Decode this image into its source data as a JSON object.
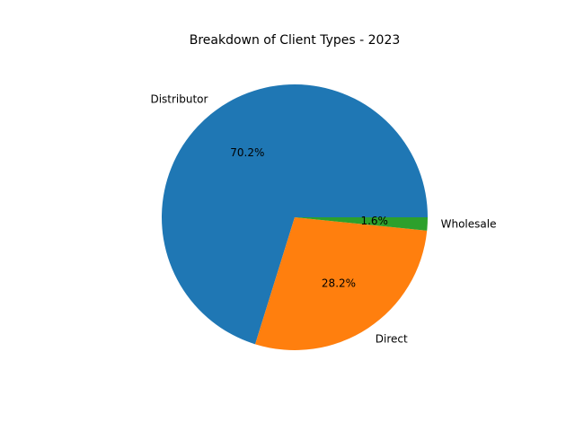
{
  "chart_data": {
    "type": "pie",
    "title": "Breakdown of Client Types - 2023",
    "categories": [
      "Distributor",
      "Direct",
      "Wholesale"
    ],
    "values": [
      70.2,
      28.2,
      1.6
    ],
    "percent_labels": [
      "70.2%",
      "28.2%",
      "1.6%"
    ],
    "colors": [
      "#1f77b4",
      "#ff7f0e",
      "#2ca02c"
    ],
    "start_angle_deg": 0,
    "direction": "counterclockwise",
    "legend": "none",
    "grid": false
  }
}
